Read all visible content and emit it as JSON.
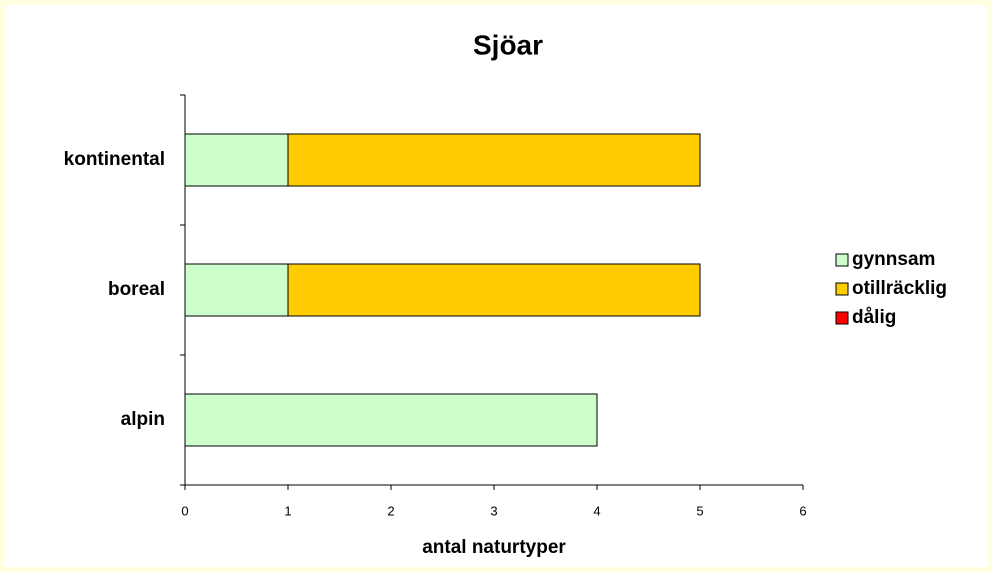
{
  "chart_data": {
    "type": "stacked-barh",
    "title": "Sjöar",
    "x_label": "antal naturtyper",
    "categories": [
      "kontinental",
      "boreal",
      "alpin"
    ],
    "series": [
      {
        "name": "gynnsam",
        "color": "#ccffcc",
        "values": [
          1,
          1,
          4
        ]
      },
      {
        "name": "otillräcklig",
        "color": "#ffcc00",
        "values": [
          4,
          4,
          0
        ]
      },
      {
        "name": "dålig",
        "color": "#ff0000",
        "values": [
          0,
          0,
          0
        ]
      }
    ],
    "xlim": [
      0,
      6
    ],
    "xticks": [
      0,
      1,
      2,
      3,
      4,
      5,
      6
    ],
    "grid": false,
    "legend": "right"
  }
}
